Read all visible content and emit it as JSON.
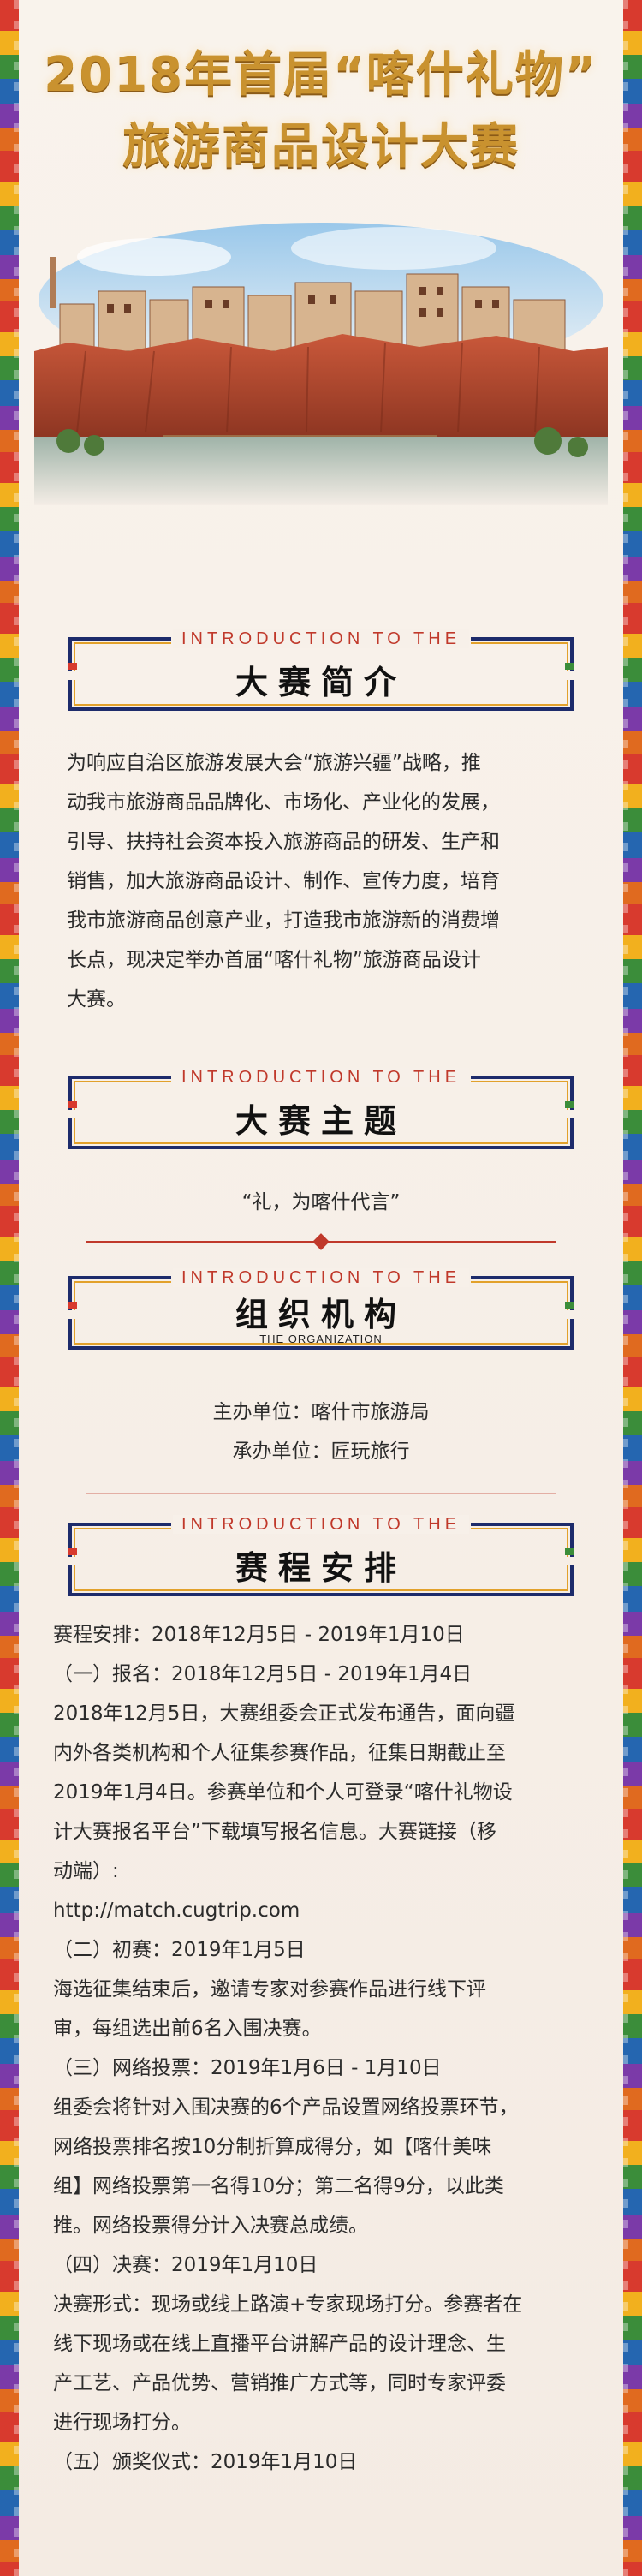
{
  "title": {
    "line1": "2018年首届“喀什礼物”",
    "line2": "旅游商品设计大赛"
  },
  "hero_icon": "kashgar-old-town-illustration",
  "colors": {
    "gold": "#c9922f",
    "red": "#c0392b",
    "navy": "#1d2b6b",
    "text": "#2b2b2b"
  },
  "sections": {
    "intro": {
      "eyebrow": "INTRODUCTION TO THE",
      "heading": "大赛简介",
      "paragraph_lines": [
        "为响应自治区旅游发展大会“旅游兴疆”战略，推",
        "动我市旅游商品品牌化、市场化、产业化的发展，",
        "引导、扶持社会资本投入旅游商品的研发、生产和",
        "销售，加大旅游商品设计、制作、宣传力度，培育",
        "我市旅游商品创意产业，打造我市旅游新的消费增",
        "长点，现决定举办首届“喀什礼物”旅游商品设计",
        "大赛。"
      ]
    },
    "theme": {
      "eyebrow": "INTRODUCTION TO THE",
      "heading": "大赛主题",
      "text": "“礼，为喀什代言”"
    },
    "org": {
      "eyebrow": "INTRODUCTION TO THE",
      "heading": "组织机构",
      "subheading": "THE ORGANIZATION",
      "host": "主办单位：喀什市旅游局",
      "organizer": "承办单位：匠玩旅行"
    },
    "schedule": {
      "eyebrow": "INTRODUCTION TO THE",
      "heading": "赛程安排",
      "lines": [
        "赛程安排：2018年12月5日 - 2019年1月10日",
        "（一）报名：2018年12月5日 - 2019年1月4日",
        "2018年12月5日，大赛组委会正式发布通告，面向疆",
        "内外各类机构和个人征集参赛作品，征集日期截止至",
        "2019年1月4日。参赛单位和个人可登录“喀什礼物设",
        "计大赛报名平台”下载填写报名信息。大赛链接（移",
        "动端）:",
        "http://match.cugtrip.com",
        "（二）初赛：2019年1月5日",
        "海选征集结束后，邀请专家对参赛作品进行线下评",
        "审，每组选出前6名入围决赛。",
        "（三）网络投票：2019年1月6日 - 1月10日",
        "组委会将针对入围决赛的6个产品设置网络投票环节，",
        "网络投票排名按10分制折算成得分，如【喀什美味",
        "组】网络投票第一名得10分；第二名得9分，以此类",
        "推。网络投票得分计入决赛总成绩。",
        "（四）决赛：2019年1月10日",
        "决赛形式：现场或线上路演+专家现场打分。参赛者在",
        "线下现场或在线上直播平台讲解产品的设计理念、生",
        "产工艺、产品优势、营销推广方式等，同时专家评委",
        "进行现场打分。",
        "（五）颁奖仪式：2019年1月10日"
      ]
    }
  }
}
